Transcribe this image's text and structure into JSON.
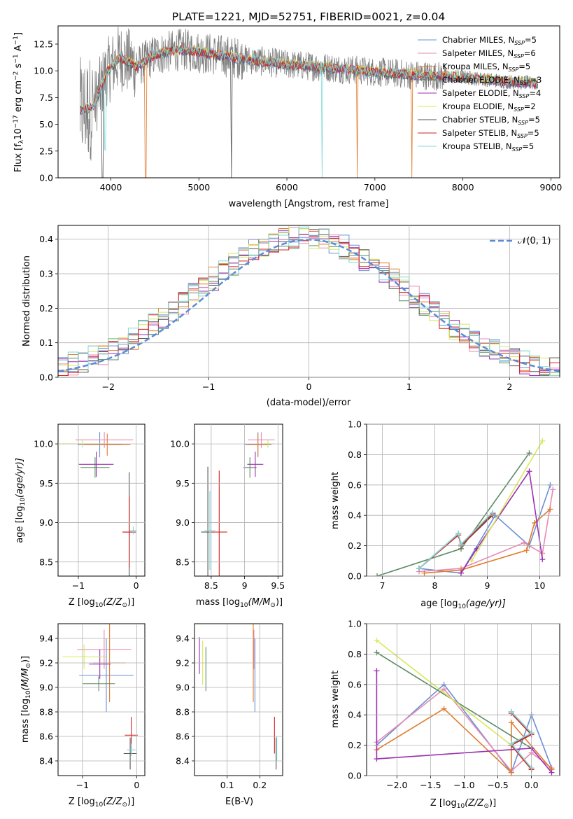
{
  "figure_title": "PLATE=1221, MJD=52751, FIBERID=0021, z=0.04",
  "chart_data": [
    {
      "id": "spectrum",
      "type": "line",
      "title": "PLATE=1221, MJD=52751, FIBERID=0021, z=0.04",
      "xlabel": "wavelength [Angstrom, rest frame]",
      "ylabel_main": "Flux [f",
      "ylabel_sub": "λ",
      "ylabel_rest": "10",
      "ylabel_exp1": "−17",
      "ylabel_units": " erg cm",
      "ylabel_exp2": "−2",
      "ylabel_s": " s",
      "ylabel_exp3": "−1",
      "ylabel_A": " A",
      "ylabel_exp4": "−1",
      "ylabel_end": "]",
      "xlim": [
        3400,
        9100
      ],
      "ylim": [
        0,
        14.2
      ],
      "xticks": [
        4000,
        5000,
        6000,
        7000,
        8000,
        9000
      ],
      "yticks": [
        0.0,
        2.5,
        5.0,
        7.5,
        10.0,
        12.5
      ],
      "data_range": [
        3650,
        8850
      ],
      "continuum_knots_x": [
        3650,
        3800,
        3950,
        4100,
        4300,
        4500,
        4800,
        5200,
        5600,
        6000,
        6500,
        7000,
        7500,
        8000,
        8500,
        8850
      ],
      "continuum_knots_y": [
        6.3,
        6.6,
        9.8,
        11.3,
        10.4,
        11.5,
        12.0,
        11.5,
        11.0,
        10.6,
        10.3,
        9.9,
        9.6,
        9.4,
        9.0,
        8.8
      ],
      "drops": [
        {
          "x": 3905,
          "to": 0.0,
          "series": "Chabrier STELIB"
        },
        {
          "x": 3935,
          "to": 2.6,
          "series": "Kroupa STELIB"
        },
        {
          "x": 4395,
          "to": 0.0,
          "series": "Kroupa MILES"
        },
        {
          "x": 5370,
          "to": 0.0,
          "series": "Chabrier STELIB"
        },
        {
          "x": 6400,
          "to": 0.0,
          "series": "Kroupa STELIB"
        },
        {
          "x": 6800,
          "to": 0.0,
          "series": "Kroupa MILES"
        },
        {
          "x": 7420,
          "to": 0.0,
          "series": "Kroupa MILES"
        }
      ],
      "legend_position": "upper-right",
      "legend": [
        {
          "label": "Chabrier MILES, N",
          "sub": "SSP",
          "tail": "=5",
          "color": "#6b8fd4"
        },
        {
          "label": "Salpeter MILES, N",
          "sub": "SSP",
          "tail": "=6",
          "color": "#e88ab3"
        },
        {
          "label": "Kroupa MILES, N",
          "sub": "SSP",
          "tail": "=5",
          "color": "#e07a2c"
        },
        {
          "label": "Chabrier ELODIE, N",
          "sub": "SSP",
          "tail": "=3",
          "color": "#5a8a64"
        },
        {
          "label": "Salpeter ELODIE, N",
          "sub": "SSP",
          "tail": "=4",
          "color": "#9b2fb0"
        },
        {
          "label": "Kroupa ELODIE, N",
          "sub": "SSP",
          "tail": "=2",
          "color": "#d8e85a"
        },
        {
          "label": "Chabrier STELIB, N",
          "sub": "SSP",
          "tail": "=5",
          "color": "#555555"
        },
        {
          "label": "Salpeter STELIB, N",
          "sub": "SSP",
          "tail": "=5",
          "color": "#d62020"
        },
        {
          "label": "Kroupa STELIB, N",
          "sub": "SSP",
          "tail": "=5",
          "color": "#7fd8d8"
        }
      ]
    },
    {
      "id": "residuals",
      "type": "line",
      "xlabel": "(data-model)/error",
      "ylabel": "Normed distribution",
      "xlim": [
        -2.5,
        2.5
      ],
      "ylim": [
        0,
        0.44
      ],
      "xticks": [
        -2,
        -1,
        0,
        1,
        2
      ],
      "xtick_labels": [
        "−2",
        "−1",
        "0",
        "1",
        "2"
      ],
      "yticks": [
        0.0,
        0.1,
        0.2,
        0.3,
        0.4
      ],
      "grid": true,
      "bins": 50,
      "gaussian_label": "𝒩(0, 1)",
      "gaussian_color": "#5b8ad8",
      "series_colors": [
        "#6b8fd4",
        "#e88ab3",
        "#e07a2c",
        "#5a8a64",
        "#9b2fb0",
        "#d8e85a",
        "#555555",
        "#d62020",
        "#7fd8d8"
      ]
    },
    {
      "id": "age_vs_Z",
      "type": "scatter",
      "xlabel": "Z [log",
      "xlabel_sub": "10",
      "xlabel_rest": "(Z/Z",
      "xlabel_sun": "⊙",
      "xlabel_end": ")]",
      "ylabel": "age  [log",
      "ylabel_sub": "10",
      "ylabel_rest": "(age/yr)]",
      "xlim": [
        -1.35,
        0.15
      ],
      "ylim": [
        8.32,
        10.25
      ],
      "xticks": [
        -1,
        0
      ],
      "xtick_labels": [
        "−1",
        "0"
      ],
      "yticks": [
        8.5,
        9.0,
        9.5,
        10.0
      ],
      "points": [
        {
          "x": -0.63,
          "y": 9.99,
          "xerr": 0.38,
          "yerr": 0.16,
          "color": "#6b8fd4"
        },
        {
          "x": -0.55,
          "y": 10.05,
          "xerr": 0.5,
          "yerr": 0.1,
          "color": "#e88ab3"
        },
        {
          "x": -0.5,
          "y": 9.99,
          "xerr": 0.4,
          "yerr": 0.14,
          "color": "#e07a2c"
        },
        {
          "x": -0.71,
          "y": 9.7,
          "xerr": 0.25,
          "yerr": 0.13,
          "color": "#5a8a64"
        },
        {
          "x": -0.69,
          "y": 9.74,
          "xerr": 0.3,
          "yerr": 0.16,
          "color": "#9b2fb0"
        },
        {
          "x": -0.93,
          "y": 10.0,
          "xerr": 0.4,
          "yerr": 0.05,
          "color": "#d8e85a"
        },
        {
          "x": -0.12,
          "y": 8.88,
          "xerr": 0.1,
          "yerr": 0.76,
          "color": "#555555"
        },
        {
          "x": -0.12,
          "y": 8.88,
          "xerr": 0.12,
          "yerr": 0.45,
          "color": "#d62020"
        },
        {
          "x": -0.05,
          "y": 8.9,
          "xerr": 0.06,
          "yerr": 0.05,
          "color": "#7fd8d8"
        }
      ]
    },
    {
      "id": "age_vs_mass",
      "type": "scatter",
      "xlabel": "mass [log",
      "xlabel_sub": "10",
      "xlabel_rest": "(M/M",
      "xlabel_sun": "⊙",
      "xlabel_end": ")]",
      "xlim": [
        8.25,
        9.57
      ],
      "ylim": [
        8.32,
        10.25
      ],
      "xticks": [
        8.5,
        9.0,
        9.5
      ],
      "yticks": [
        8.5,
        9.0,
        9.5,
        10.0
      ],
      "points": [
        {
          "x": 9.2,
          "y": 9.99,
          "xerr": 0.2,
          "yerr": 0.16,
          "color": "#6b8fd4"
        },
        {
          "x": 9.25,
          "y": 10.05,
          "xerr": 0.2,
          "yerr": 0.1,
          "color": "#e88ab3"
        },
        {
          "x": 9.2,
          "y": 9.99,
          "xerr": 0.15,
          "yerr": 0.14,
          "color": "#e07a2c"
        },
        {
          "x": 9.08,
          "y": 9.7,
          "xerr": 0.1,
          "yerr": 0.13,
          "color": "#5a8a64"
        },
        {
          "x": 9.16,
          "y": 9.74,
          "xerr": 0.12,
          "yerr": 0.16,
          "color": "#9b2fb0"
        },
        {
          "x": 9.35,
          "y": 10.0,
          "xerr": 0.1,
          "yerr": 0.05,
          "color": "#d8e85a"
        },
        {
          "x": 8.45,
          "y": 8.88,
          "xerr": 0.1,
          "yerr": 0.83,
          "color": "#555555"
        },
        {
          "x": 8.62,
          "y": 8.88,
          "xerr": 0.12,
          "yerr": 0.78,
          "color": "#d62020"
        },
        {
          "x": 8.48,
          "y": 8.9,
          "xerr": 0.08,
          "yerr": 0.5,
          "color": "#7fd8d8"
        }
      ]
    },
    {
      "id": "weight_vs_age",
      "type": "line",
      "xlabel": "age  [log",
      "xlabel_sub": "10",
      "xlabel_rest": "(age/yr)]",
      "ylabel": "mass weight",
      "xlim": [
        6.7,
        10.38
      ],
      "ylim": [
        0,
        1.0
      ],
      "xticks": [
        7,
        8,
        9,
        10
      ],
      "yticks": [
        0.0,
        0.2,
        0.4,
        0.6,
        0.8,
        1.0
      ],
      "grid": true,
      "series": [
        {
          "name": "Chabrier MILES",
          "color": "#6b8fd4",
          "x": [
            7.7,
            8.5,
            9.15,
            9.8,
            10.2
          ],
          "y": [
            0.05,
            0.02,
            0.4,
            0.2,
            0.6
          ]
        },
        {
          "name": "Salpeter MILES",
          "color": "#e88ab3",
          "x": [
            7.7,
            8.5,
            9.7,
            10.05,
            10.25
          ],
          "y": [
            0.03,
            0.05,
            0.22,
            0.15,
            0.57
          ]
        },
        {
          "name": "Kroupa MILES",
          "color": "#e07a2c",
          "x": [
            7.8,
            8.5,
            9.75,
            9.9,
            10.2
          ],
          "y": [
            0.02,
            0.04,
            0.17,
            0.35,
            0.44
          ]
        },
        {
          "name": "Chabrier ELODIE",
          "color": "#5a8a64",
          "x": [
            6.9,
            8.5,
            9.8
          ],
          "y": [
            0.0,
            0.18,
            0.81
          ]
        },
        {
          "name": "Salpeter ELODIE",
          "color": "#9b2fb0",
          "x": [
            8.5,
            8.8,
            9.8,
            10.05
          ],
          "y": [
            0.02,
            0.18,
            0.69,
            0.11
          ]
        },
        {
          "name": "Kroupa ELODIE",
          "color": "#d8e85a",
          "x": [
            8.7,
            10.05
          ],
          "y": [
            0.1,
            0.89
          ]
        },
        {
          "name": "Chabrier STELIB",
          "color": "#555555",
          "x": [
            7.7,
            8.45,
            8.5,
            9.1
          ],
          "y": [
            0.05,
            0.28,
            0.2,
            0.4
          ]
        },
        {
          "name": "Salpeter STELIB",
          "color": "#d62020",
          "x": [
            7.7,
            8.45,
            8.5,
            9.1
          ],
          "y": [
            0.05,
            0.27,
            0.2,
            0.41
          ]
        },
        {
          "name": "Kroupa STELIB",
          "color": "#7fd8d8",
          "x": [
            7.7,
            8.45,
            8.5,
            9.1
          ],
          "y": [
            0.05,
            0.28,
            0.21,
            0.42
          ]
        }
      ]
    },
    {
      "id": "mass_vs_Z",
      "type": "scatter",
      "xlabel": "Z [log",
      "xlabel_sub": "10",
      "xlabel_rest": "(Z/Z",
      "xlabel_sun": "⊙",
      "xlabel_end": ")]",
      "ylabel": "mass [log",
      "ylabel_sub": "10",
      "ylabel_rest": "(M/M",
      "ylabel_sun": "⊙",
      "ylabel_end": ")]",
      "xlim": [
        -1.45,
        0.15
      ],
      "ylim": [
        8.28,
        9.52
      ],
      "xticks": [
        -1,
        0
      ],
      "xtick_labels": [
        "−1",
        "0"
      ],
      "yticks": [
        8.4,
        8.6,
        8.8,
        9.0,
        9.2,
        9.4
      ],
      "points": [
        {
          "x": -0.56,
          "y": 9.1,
          "xerr": 0.5,
          "yerr": 0.3,
          "color": "#6b8fd4"
        },
        {
          "x": -0.6,
          "y": 9.31,
          "xerr": 0.5,
          "yerr": 0.16,
          "color": "#e88ab3"
        },
        {
          "x": -0.5,
          "y": 9.2,
          "xerr": 0.3,
          "yerr": 0.32,
          "color": "#e07a2c"
        },
        {
          "x": -0.7,
          "y": 9.03,
          "xerr": 0.3,
          "yerr": 0.06,
          "color": "#5a8a64"
        },
        {
          "x": -0.68,
          "y": 9.19,
          "xerr": 0.2,
          "yerr": 0.12,
          "color": "#9b2fb0"
        },
        {
          "x": -0.97,
          "y": 9.25,
          "xerr": 0.4,
          "yerr": 0.1,
          "color": "#d8e85a"
        },
        {
          "x": -0.12,
          "y": 8.46,
          "xerr": 0.12,
          "yerr": 0.13,
          "color": "#555555"
        },
        {
          "x": -0.1,
          "y": 8.61,
          "xerr": 0.12,
          "yerr": 0.15,
          "color": "#d62020"
        },
        {
          "x": -0.1,
          "y": 8.49,
          "xerr": 0.08,
          "yerr": 0.05,
          "color": "#7fd8d8"
        }
      ]
    },
    {
      "id": "mass_vs_ebv",
      "type": "scatter",
      "xlabel": "E(B-V)",
      "xlim": [
        0.0,
        0.27
      ],
      "ylim": [
        8.28,
        9.52
      ],
      "xticks": [
        0.1,
        0.2
      ],
      "yticks": [
        8.4,
        8.6,
        8.8,
        9.0,
        9.2,
        9.4
      ],
      "points": [
        {
          "x": 0.185,
          "y": 9.1,
          "yerr": 0.3,
          "color": "#6b8fd4"
        },
        {
          "x": 0.182,
          "y": 9.31,
          "yerr": 0.16,
          "color": "#e88ab3"
        },
        {
          "x": 0.18,
          "y": 9.2,
          "yerr": 0.32,
          "color": "#e07a2c"
        },
        {
          "x": 0.035,
          "y": 9.15,
          "yerr": 0.18,
          "color": "#5a8a64"
        },
        {
          "x": 0.015,
          "y": 9.26,
          "yerr": 0.15,
          "color": "#9b2fb0"
        },
        {
          "x": 0.025,
          "y": 9.2,
          "yerr": 0.18,
          "color": "#d8e85a"
        },
        {
          "x": 0.25,
          "y": 8.46,
          "yerr": 0.13,
          "color": "#555555"
        },
        {
          "x": 0.245,
          "y": 8.61,
          "yerr": 0.15,
          "color": "#d62020"
        },
        {
          "x": 0.252,
          "y": 8.5,
          "yerr": 0.1,
          "color": "#7fd8d8"
        }
      ]
    },
    {
      "id": "weight_vs_Z",
      "type": "line",
      "xlabel": "Z [log",
      "xlabel_sub": "10",
      "xlabel_rest": "(Z/Z",
      "xlabel_sun": "⊙",
      "xlabel_end": ")]",
      "ylabel": "mass weight",
      "xlim": [
        -2.45,
        0.42
      ],
      "ylim": [
        0,
        1.0
      ],
      "xticks": [
        -2.0,
        -1.5,
        -1.0,
        -0.5,
        0.0
      ],
      "xtick_labels": [
        "−2.0",
        "−1.5",
        "−1.0",
        "−0.5",
        "0.0"
      ],
      "yticks": [
        0.0,
        0.2,
        0.4,
        0.6,
        0.8,
        1.0
      ],
      "grid": true,
      "series": [
        {
          "name": "Chabrier MILES",
          "color": "#6b8fd4",
          "x": [
            -2.3,
            -1.3,
            -0.3,
            0.0,
            0.3
          ],
          "y": [
            0.2,
            0.6,
            0.02,
            0.4,
            0.05
          ]
        },
        {
          "name": "Salpeter MILES",
          "color": "#e88ab3",
          "x": [
            -2.3,
            -1.3,
            -0.3,
            0.0,
            0.3
          ],
          "y": [
            0.22,
            0.57,
            0.03,
            0.15,
            0.05
          ]
        },
        {
          "name": "Kroupa MILES",
          "color": "#e07a2c",
          "x": [
            -2.3,
            -1.3,
            -0.3,
            -0.3,
            0.3
          ],
          "y": [
            0.17,
            0.44,
            0.02,
            0.35,
            0.04
          ]
        },
        {
          "name": "Chabrier ELODIE",
          "color": "#5a8a64",
          "x": [
            -2.3,
            0.0
          ],
          "y": [
            0.81,
            0.18
          ]
        },
        {
          "name": "Salpeter ELODIE",
          "color": "#9b2fb0",
          "x": [
            -2.3,
            -2.3,
            0.0,
            0.3
          ],
          "y": [
            0.69,
            0.11,
            0.18,
            0.02
          ]
        },
        {
          "name": "Kroupa ELODIE",
          "color": "#d8e85a",
          "x": [
            -2.3,
            -0.3
          ],
          "y": [
            0.89,
            0.2
          ]
        },
        {
          "name": "Chabrier STELIB",
          "color": "#555555",
          "x": [
            -0.3,
            0.0,
            -0.3,
            0.0
          ],
          "y": [
            0.42,
            0.28,
            0.2,
            0.05
          ]
        },
        {
          "name": "Salpeter STELIB",
          "color": "#d62020",
          "x": [
            -0.3,
            0.0,
            -0.3,
            0.0
          ],
          "y": [
            0.41,
            0.27,
            0.2,
            0.04
          ]
        },
        {
          "name": "Kroupa STELIB",
          "color": "#7fd8d8",
          "x": [
            -0.3,
            0.0,
            -0.3,
            0.0
          ],
          "y": [
            0.42,
            0.28,
            0.21,
            0.05
          ]
        }
      ]
    }
  ]
}
